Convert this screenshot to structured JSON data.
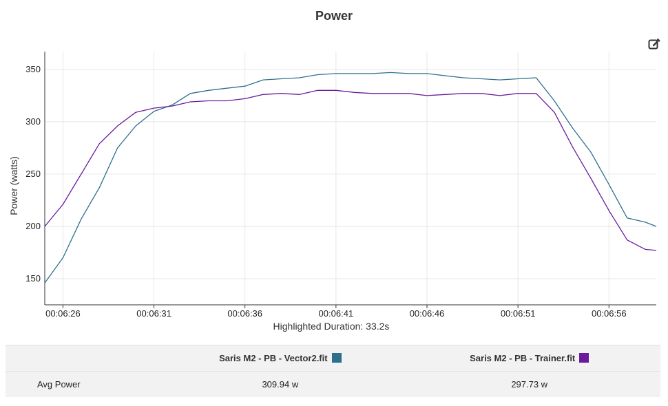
{
  "title": "Power",
  "colors": {
    "vector2": "#2e6f8e",
    "trainer": "#6a1b9a",
    "grid": "#e6e6e6",
    "axis": "#333333"
  },
  "icons": {
    "edit": "edit-icon"
  },
  "chart_data": {
    "type": "line",
    "title": "Power",
    "xlabel": "Highlighted Duration: 33.2s",
    "ylabel": "Power (watts)",
    "ylim": [
      125,
      367
    ],
    "xlim_seconds": [
      385.0,
      418.6
    ],
    "yticks": [
      150,
      200,
      250,
      300,
      350
    ],
    "xticks": [
      {
        "label": "00:06:26",
        "t": 386
      },
      {
        "label": "00:06:31",
        "t": 391
      },
      {
        "label": "00:06:36",
        "t": 396
      },
      {
        "label": "00:06:41",
        "t": 401
      },
      {
        "label": "00:06:46",
        "t": 406
      },
      {
        "label": "00:06:51",
        "t": 411
      },
      {
        "label": "00:06:56",
        "t": 416
      }
    ],
    "grid": true,
    "x": [
      385,
      386,
      387,
      388,
      389,
      390,
      391,
      392,
      393,
      394,
      395,
      396,
      397,
      398,
      399,
      400,
      401,
      402,
      403,
      404,
      405,
      406,
      407,
      408,
      409,
      410,
      411,
      412,
      413,
      414,
      415,
      416,
      417,
      418,
      418.6
    ],
    "series": [
      {
        "name": "Saris M2 - PB - Vector2.fit",
        "color": "#2e6f8e",
        "values": [
          146,
          170,
          207,
          237,
          275,
          296,
          310,
          316,
          327,
          330,
          332,
          334,
          340,
          341,
          342,
          345,
          346,
          346,
          346,
          347,
          346,
          346,
          344,
          342,
          341,
          340,
          341,
          342,
          320,
          294,
          271,
          240,
          208,
          204,
          200
        ]
      },
      {
        "name": "Saris M2 - PB - Trainer.fit",
        "color": "#6a1b9a",
        "values": [
          200,
          221,
          250,
          279,
          296,
          309,
          313,
          315,
          319,
          320,
          320,
          322,
          326,
          327,
          326,
          330,
          330,
          328,
          327,
          327,
          327,
          325,
          326,
          327,
          327,
          325,
          327,
          327,
          309,
          276,
          246,
          215,
          187,
          178,
          177
        ]
      }
    ]
  },
  "summary": {
    "header": {
      "label": "",
      "series_a": "Saris M2 - PB - Vector2.fit",
      "series_b": "Saris M2 - PB - Trainer.fit"
    },
    "rows": [
      {
        "label": "Avg Power",
        "a": "309.94 w",
        "b": "297.73 w"
      }
    ]
  }
}
